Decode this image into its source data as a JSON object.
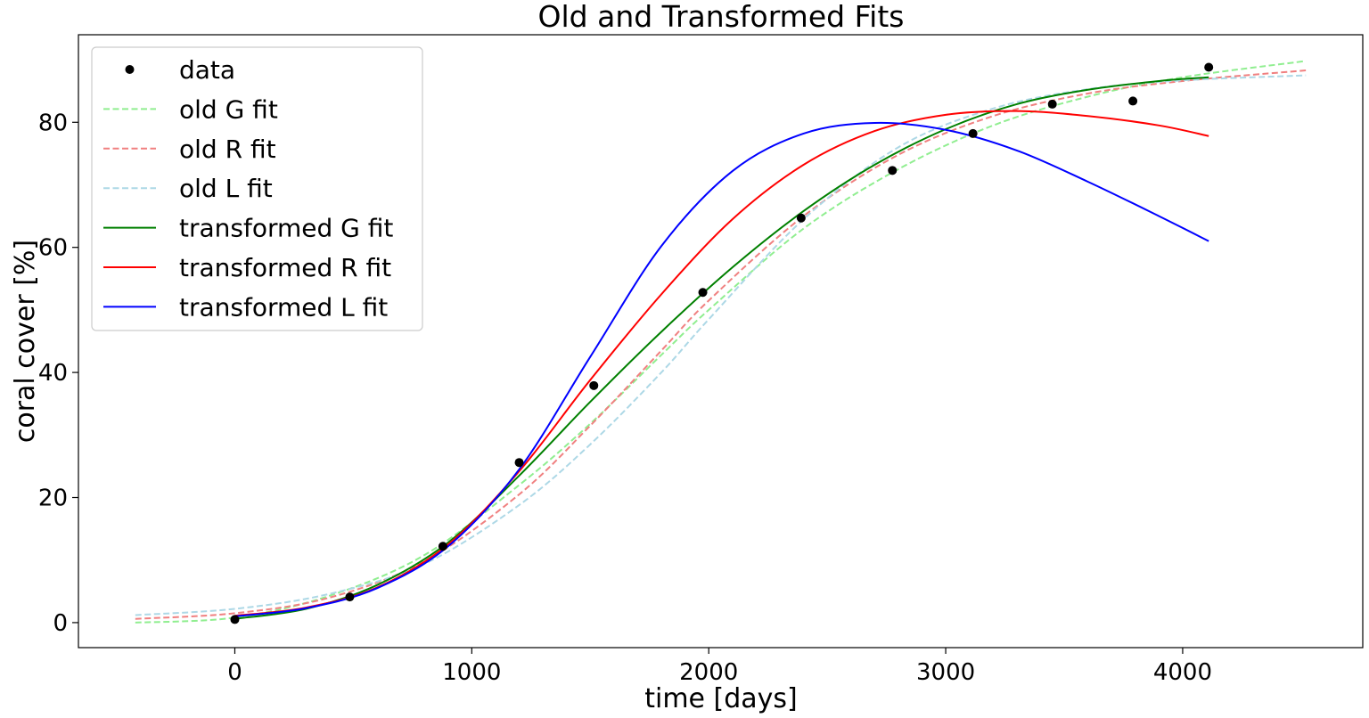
{
  "chart_data": {
    "type": "line",
    "title": "Old and Transformed Fits",
    "xlabel": "time [days]",
    "ylabel": "coral cover [%]",
    "xlim": [
      -660,
      4760
    ],
    "ylim": [
      -4,
      94
    ],
    "xticks": [
      0,
      1000,
      2000,
      3000,
      4000
    ],
    "xtick_labels": [
      "0",
      "1000",
      "2000",
      "3000",
      "4000"
    ],
    "yticks": [
      0,
      20,
      40,
      60,
      80
    ],
    "ytick_labels": [
      "0",
      "20",
      "40",
      "60",
      "80"
    ],
    "grid": false,
    "legend_position": "top-left",
    "data_points": {
      "name": "data",
      "color": "#000000",
      "x": [
        0,
        485,
        878,
        1200,
        1515,
        1975,
        2390,
        2775,
        3115,
        3450,
        3790,
        4110
      ],
      "y": [
        0.5,
        4.1,
        12.2,
        25.6,
        37.9,
        52.8,
        64.7,
        72.3,
        78.2,
        82.9,
        83.4,
        88.8
      ]
    },
    "series": [
      {
        "name": "old G fit",
        "color": "#90EE90",
        "dashed": true,
        "x": [
          -420,
          0,
          400,
          800,
          1200,
          1500,
          1800,
          2000,
          2400,
          2800,
          3200,
          3600,
          4000,
          4520
        ],
        "y": [
          0.0,
          0.8,
          4.3,
          10.8,
          22.0,
          31.8,
          42.8,
          50.0,
          63.0,
          72.5,
          79.5,
          84.1,
          87.2,
          89.8
        ]
      },
      {
        "name": "old R fit",
        "color": "#F08080",
        "dashed": true,
        "x": [
          -420,
          0,
          400,
          800,
          1200,
          1500,
          1800,
          2000,
          2400,
          2800,
          3200,
          3600,
          4000,
          4520
        ],
        "y": [
          0.6,
          1.5,
          4.0,
          9.8,
          20.5,
          31.5,
          43.5,
          51.5,
          65.0,
          74.8,
          81.0,
          84.6,
          86.6,
          88.3
        ]
      },
      {
        "name": "old L fit",
        "color": "#ADD8E6",
        "dashed": true,
        "x": [
          -420,
          0,
          400,
          800,
          1200,
          1500,
          1800,
          2000,
          2400,
          2800,
          3200,
          3600,
          4000,
          4520
        ],
        "y": [
          1.2,
          2.2,
          4.6,
          9.4,
          18.8,
          28.5,
          40.0,
          48.5,
          64.5,
          76.0,
          82.2,
          85.3,
          86.7,
          87.5
        ]
      },
      {
        "name": "transformed G fit",
        "color": "#008000",
        "dashed": false,
        "x": [
          0,
          300,
          600,
          900,
          1200,
          1500,
          1800,
          2100,
          2400,
          2700,
          3000,
          3300,
          3600,
          3900,
          4110
        ],
        "y": [
          0.6,
          2.2,
          6.0,
          12.8,
          23.5,
          35.3,
          46.5,
          56.8,
          65.8,
          73.2,
          78.9,
          82.9,
          85.2,
          86.6,
          87.2
        ]
      },
      {
        "name": "transformed R fit",
        "color": "#FF0000",
        "dashed": false,
        "x": [
          0,
          300,
          600,
          900,
          1200,
          1500,
          1800,
          2100,
          2400,
          2700,
          3000,
          3300,
          3600,
          3900,
          4110
        ],
        "y": [
          1.1,
          2.4,
          5.6,
          12.5,
          24.2,
          38.8,
          52.5,
          64.5,
          73.2,
          78.6,
          81.2,
          81.8,
          81.0,
          79.5,
          77.8
        ]
      },
      {
        "name": "transformed L fit",
        "color": "#0000FF",
        "dashed": false,
        "x": [
          0,
          300,
          600,
          900,
          1200,
          1500,
          1800,
          2100,
          2400,
          2700,
          3000,
          3300,
          3600,
          3900,
          4110
        ],
        "y": [
          1.0,
          2.3,
          5.5,
          12.2,
          24.5,
          42.5,
          60.2,
          72.2,
          78.2,
          79.9,
          78.8,
          75.5,
          70.5,
          65.0,
          61.0
        ]
      }
    ]
  }
}
